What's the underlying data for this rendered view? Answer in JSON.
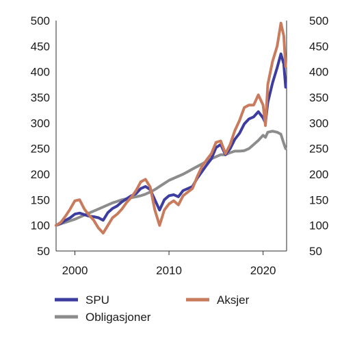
{
  "chart_data": {
    "type": "line",
    "title": "",
    "xlabel": "",
    "ylabel": "",
    "xlim": [
      1998,
      2022.5
    ],
    "ylim": [
      50,
      500
    ],
    "y_ticks": [
      50,
      100,
      150,
      200,
      250,
      300,
      350,
      400,
      450,
      500
    ],
    "y_tick_labels": [
      "50",
      "100",
      "150",
      "200",
      "250",
      "300",
      "350",
      "400",
      "450",
      "500"
    ],
    "x_ticks": [
      2000,
      2010,
      2020
    ],
    "x_tick_labels": [
      "2000",
      "2010",
      "2020"
    ],
    "grid": false,
    "legend_position": "bottom",
    "series": [
      {
        "name": "SPU",
        "color": "#3d3da0",
        "x": [
          1998,
          1998.5,
          1999,
          1999.5,
          2000,
          2000.5,
          2001,
          2001.5,
          2002,
          2002.5,
          2003,
          2003.5,
          2004,
          2004.5,
          2005,
          2005.5,
          2006,
          2006.5,
          2007,
          2007.5,
          2008,
          2008.5,
          2009,
          2009.5,
          2010,
          2010.5,
          2011,
          2011.5,
          2012,
          2012.5,
          2013,
          2013.5,
          2014,
          2014.5,
          2015,
          2015.5,
          2016,
          2016.5,
          2017,
          2017.5,
          2018,
          2018.5,
          2019,
          2019.5,
          2020,
          2020.25,
          2020.5,
          2021,
          2021.5,
          2021.9,
          2022.2,
          2022.4
        ],
        "values": [
          100,
          104,
          110,
          115,
          122,
          124,
          121,
          118,
          117,
          115,
          110,
          125,
          133,
          138,
          146,
          152,
          158,
          162,
          172,
          176,
          170,
          150,
          130,
          150,
          158,
          160,
          156,
          168,
          172,
          176,
          192,
          205,
          218,
          230,
          252,
          258,
          238,
          250,
          268,
          280,
          298,
          308,
          312,
          322,
          310,
          300,
          340,
          378,
          408,
          435,
          415,
          370
        ]
      },
      {
        "name": "Aksjer",
        "color": "#c97b5e",
        "x": [
          1998,
          1998.5,
          1999,
          1999.5,
          2000,
          2000.5,
          2001,
          2001.5,
          2002,
          2002.5,
          2003,
          2003.5,
          2004,
          2004.5,
          2005,
          2005.5,
          2006,
          2006.5,
          2007,
          2007.5,
          2008,
          2008.5,
          2009,
          2009.5,
          2010,
          2010.5,
          2011,
          2011.5,
          2012,
          2012.5,
          2013,
          2013.5,
          2014,
          2014.5,
          2015,
          2015.5,
          2016,
          2016.5,
          2017,
          2017.5,
          2018,
          2018.5,
          2019,
          2019.5,
          2020,
          2020.25,
          2020.5,
          2021,
          2021.5,
          2021.9,
          2022.2,
          2022.4
        ],
        "values": [
          100,
          106,
          118,
          132,
          148,
          150,
          132,
          120,
          110,
          95,
          85,
          100,
          115,
          122,
          132,
          145,
          155,
          168,
          185,
          190,
          175,
          130,
          100,
          130,
          142,
          148,
          140,
          158,
          165,
          172,
          195,
          215,
          228,
          240,
          262,
          265,
          240,
          258,
          285,
          305,
          330,
          335,
          335,
          355,
          335,
          295,
          375,
          420,
          450,
          495,
          470,
          410
        ]
      },
      {
        "name": "Obligasjoner",
        "color": "#8c8c8c",
        "x": [
          1998,
          1998.5,
          1999,
          1999.5,
          2000,
          2000.5,
          2001,
          2001.5,
          2002,
          2002.5,
          2003,
          2003.5,
          2004,
          2004.5,
          2005,
          2005.5,
          2006,
          2006.5,
          2007,
          2007.5,
          2008,
          2008.5,
          2009,
          2009.5,
          2010,
          2010.5,
          2011,
          2011.5,
          2012,
          2012.5,
          2013,
          2013.5,
          2014,
          2014.5,
          2015,
          2015.5,
          2016,
          2016.5,
          2017,
          2017.5,
          2018,
          2018.5,
          2019,
          2019.5,
          2020,
          2020.25,
          2020.5,
          2021,
          2021.5,
          2021.9,
          2022.2,
          2022.4
        ],
        "values": [
          100,
          103,
          106,
          109,
          112,
          116,
          120,
          124,
          128,
          132,
          136,
          140,
          144,
          147,
          150,
          152,
          154,
          156,
          158,
          161,
          165,
          170,
          176,
          182,
          188,
          192,
          196,
          200,
          205,
          210,
          215,
          220,
          225,
          230,
          234,
          238,
          238,
          242,
          245,
          245,
          246,
          250,
          258,
          266,
          276,
          272,
          282,
          284,
          282,
          278,
          260,
          250
        ]
      }
    ]
  }
}
